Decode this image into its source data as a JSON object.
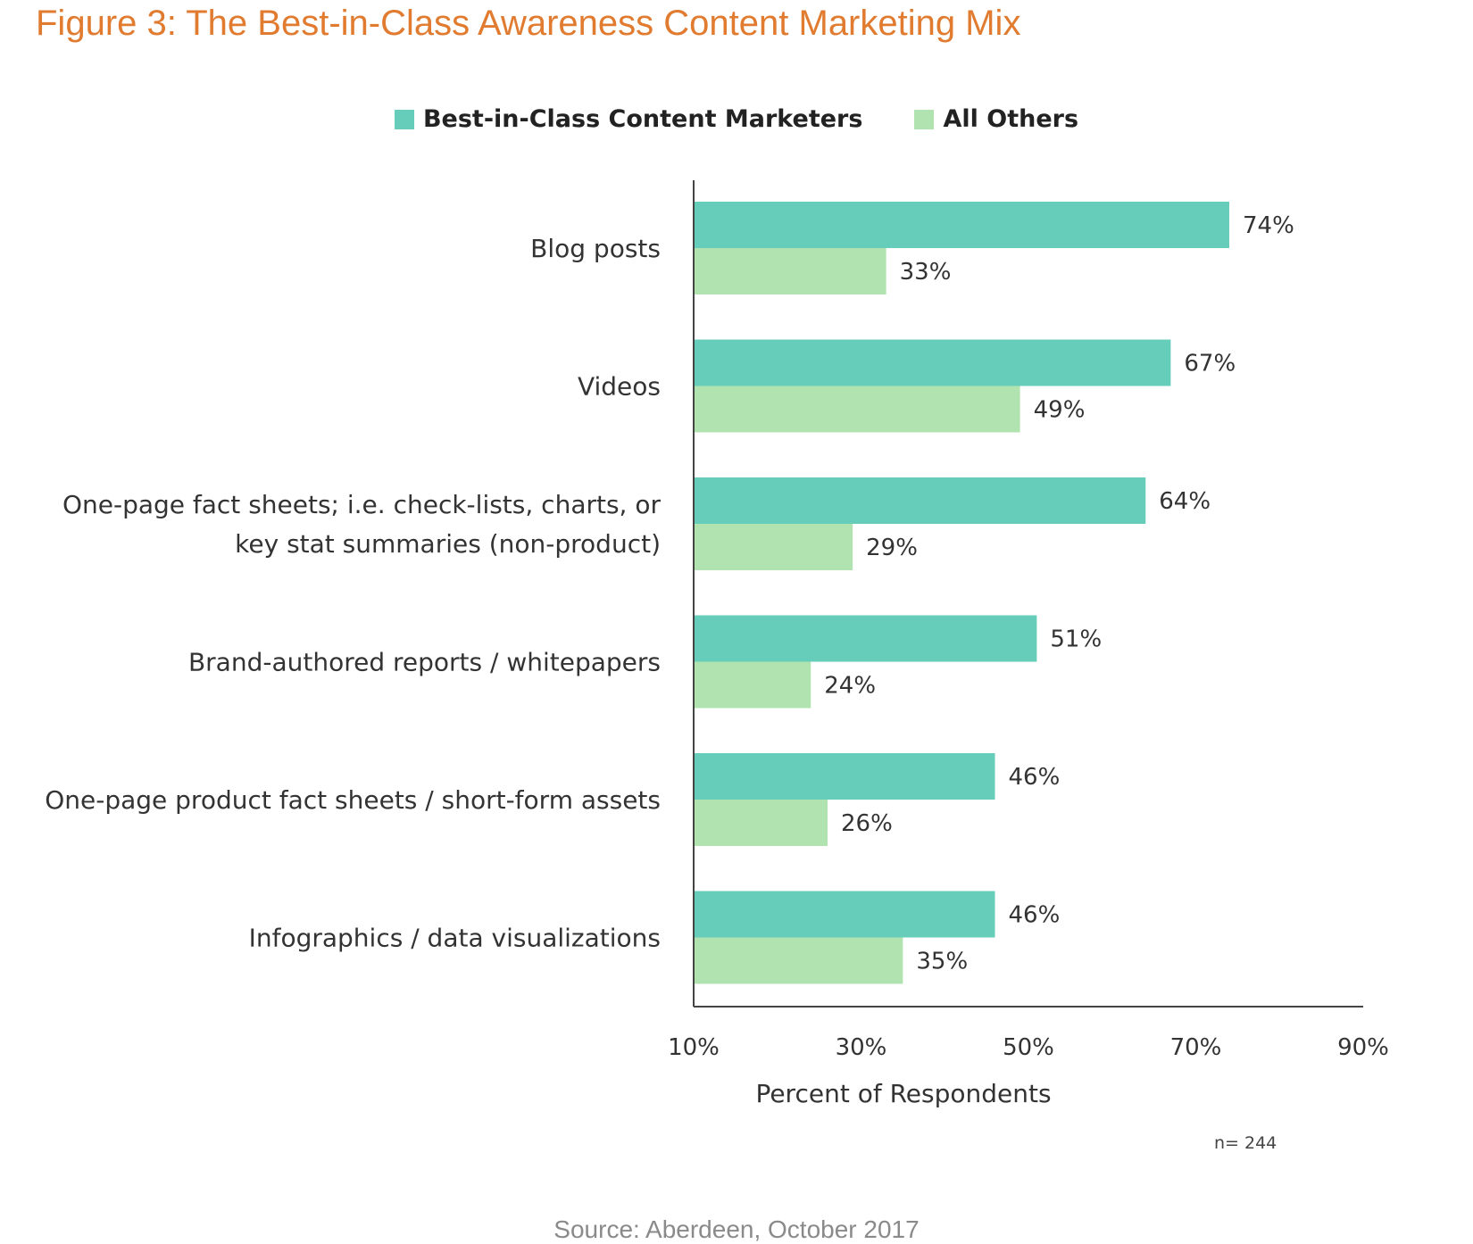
{
  "figure_title": "Figure 3: The Best-in-Class Awareness Content Marketing Mix",
  "n_note": "n= 244",
  "source": "Source: Aberdeen, October 2017",
  "colors": {
    "best_in_class": "#66CDBB",
    "all_others": "#B0E3B0",
    "title": "#E07B30"
  },
  "chart_data": {
    "type": "bar",
    "orientation": "horizontal",
    "title": "",
    "xlabel": "Percent of Respondents",
    "ylabel": "",
    "xlim": [
      10,
      90
    ],
    "xticks": [
      10,
      30,
      50,
      70,
      90
    ],
    "xtick_labels": [
      "10%",
      "30%",
      "50%",
      "70%",
      "90%"
    ],
    "legend_position": "top",
    "grid": false,
    "categories": [
      [
        "Blog posts"
      ],
      [
        "Videos"
      ],
      [
        "One-page fact sheets; i.e. check-lists, charts, or",
        "key stat summaries (non-product)"
      ],
      [
        "Brand-authored reports / whitepapers"
      ],
      [
        "One-page product fact sheets / short-form assets"
      ],
      [
        "Infographics / data visualizations"
      ]
    ],
    "series": [
      {
        "name": "Best-in-Class Content Marketers",
        "values": [
          74,
          67,
          64,
          51,
          46,
          46
        ],
        "labels": [
          "74%",
          "67%",
          "64%",
          "51%",
          "46%",
          "46%"
        ]
      },
      {
        "name": "All Others",
        "values": [
          33,
          49,
          29,
          24,
          26,
          35
        ],
        "labels": [
          "33%",
          "49%",
          "29%",
          "24%",
          "26%",
          "35%"
        ]
      }
    ]
  }
}
